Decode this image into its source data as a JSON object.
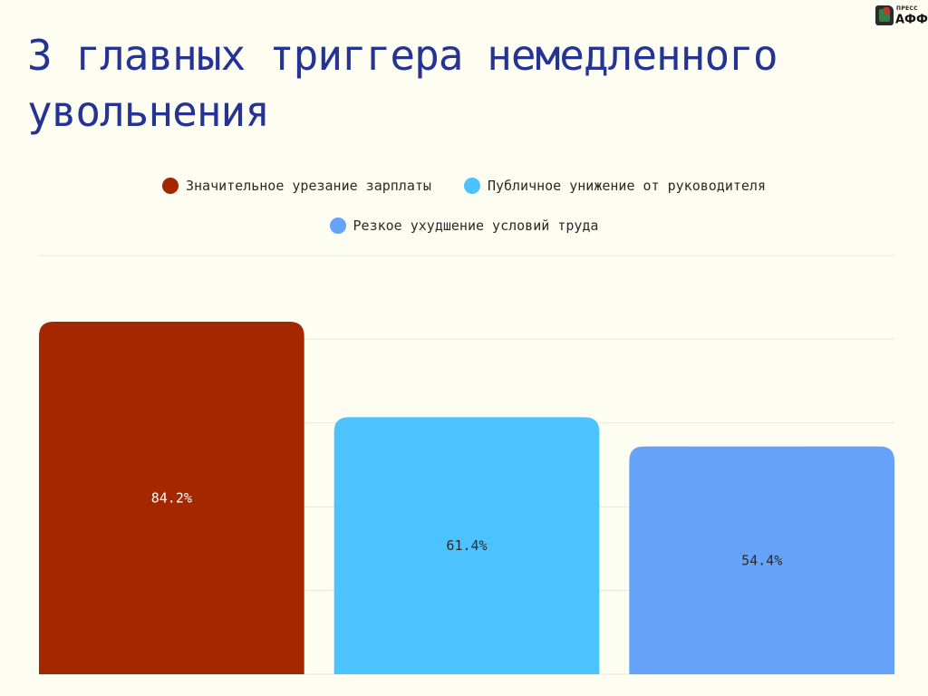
{
  "brand": {
    "top": "ПРЕСС",
    "main": "АФФ",
    "mark": "®"
  },
  "title": "3 главных триггера немедленного увольнения",
  "colors": {
    "background": "#fdfdf2",
    "title": "#253494",
    "grid": "#e8e8d8",
    "label_text": "#ffffff",
    "label_text_dark": "#2a2a2a"
  },
  "chart_data": {
    "type": "bar",
    "title": "3 главных триггера немедленного увольнения",
    "categories": [
      "Значительное урезание зарплаты",
      "Публичное унижение от руководителя",
      "Резкое ухудшение условий труда"
    ],
    "values": [
      84.2,
      61.4,
      54.4
    ],
    "value_labels": [
      "84.2%",
      "61.4%",
      "54.4%"
    ],
    "colors": [
      "#a32800",
      "#4cc3ff",
      "#66a3f8"
    ],
    "unit": "%",
    "ylim": [
      0,
      100
    ],
    "grid": true,
    "legend_position": "top-center",
    "xlabel": "",
    "ylabel": ""
  }
}
